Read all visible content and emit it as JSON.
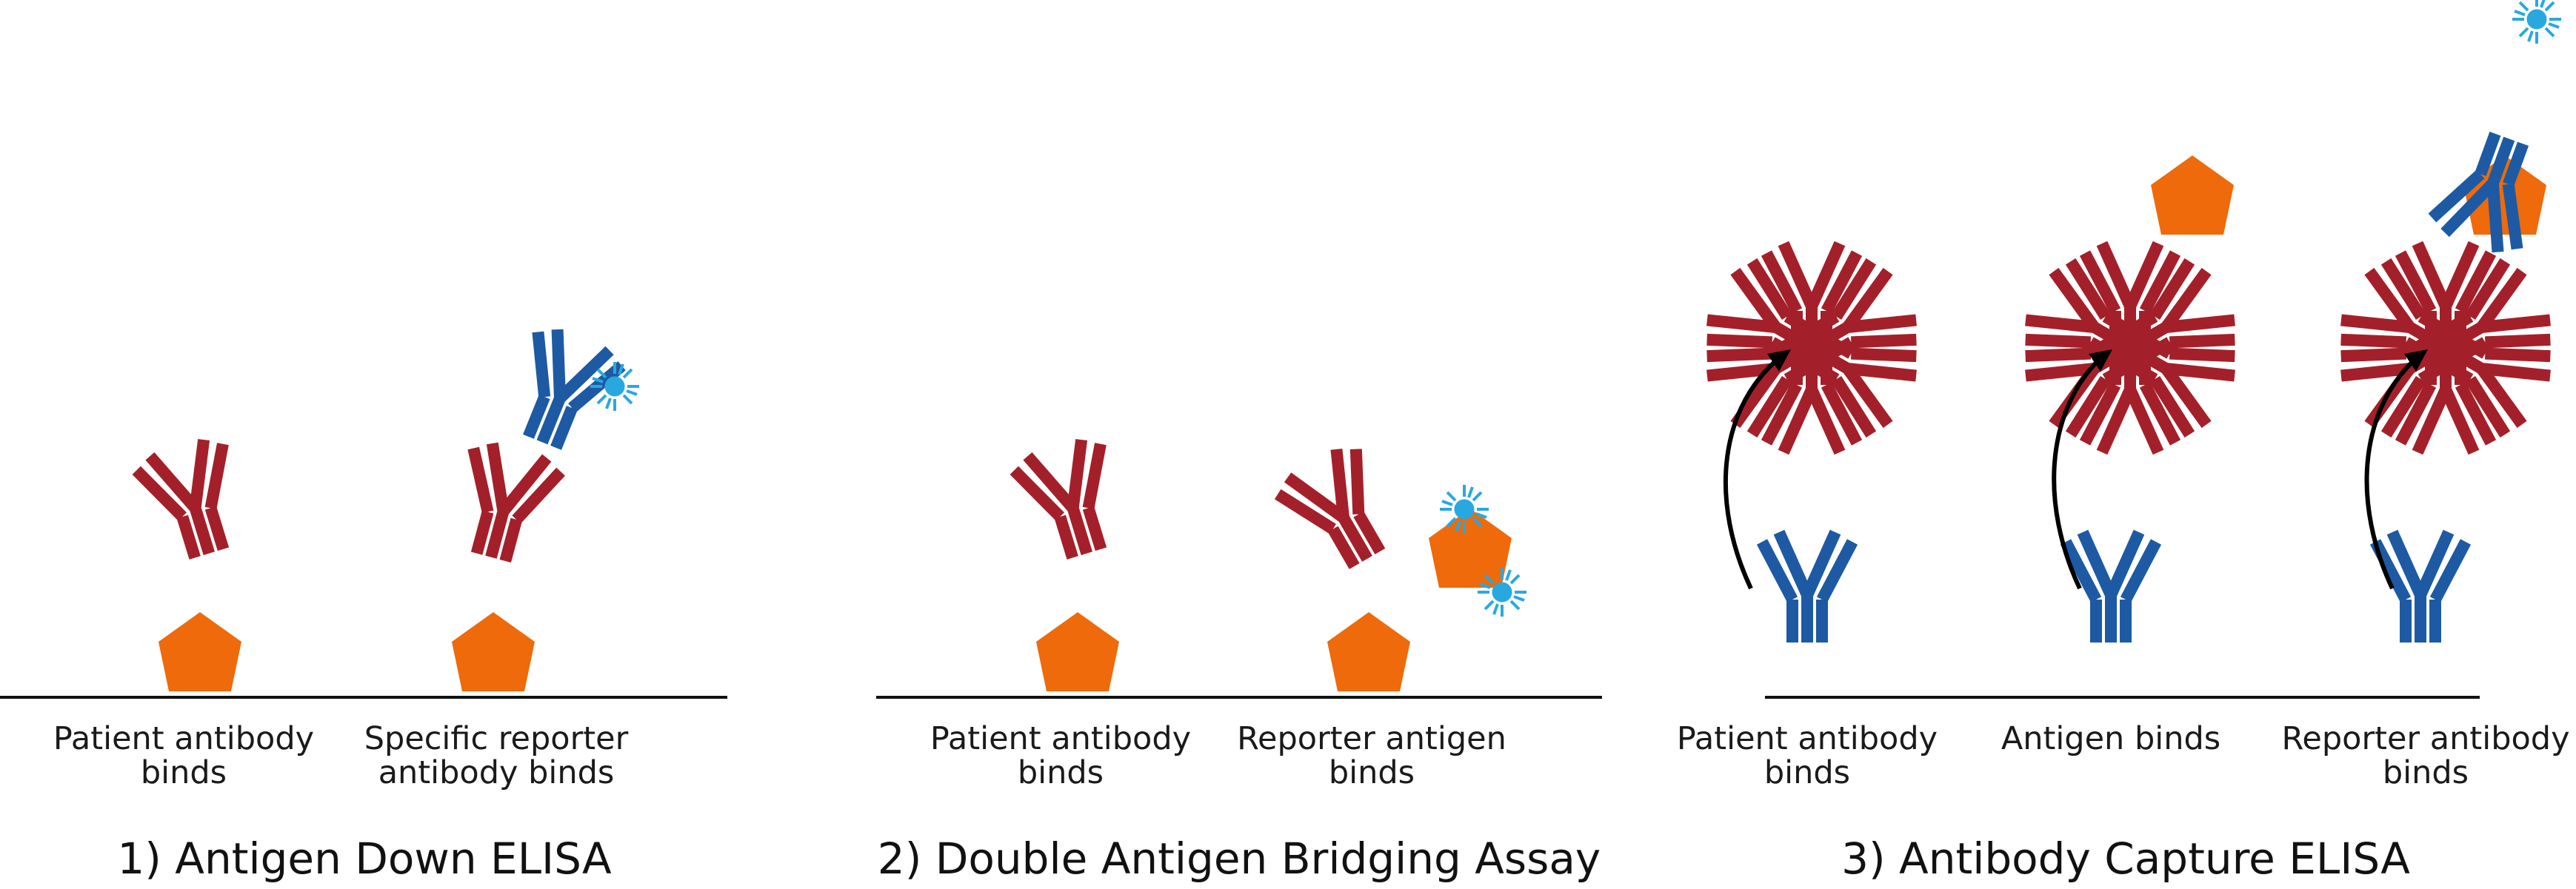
{
  "colors": {
    "patient_antibody": "#a3202a",
    "reporter_antibody": "#1d5aa3",
    "antigen": "#ee6a0a",
    "reporter_label": "#29a8df",
    "surface": "#111111"
  },
  "panels": [
    {
      "title": "1) Antigen Down ELISA",
      "steps": [
        {
          "line1": "Patient antibody",
          "line2": "binds"
        },
        {
          "line1": "Specific reporter",
          "line2": "antibody binds"
        }
      ]
    },
    {
      "title": "2) Double Antigen Bridging Assay",
      "steps": [
        {
          "line1": "Patient antibody",
          "line2": "binds"
        },
        {
          "line1": "Reporter antigen",
          "line2": "binds"
        }
      ]
    },
    {
      "title": "3) Antibody Capture ELISA",
      "steps": [
        {
          "line1": "Patient antibody",
          "line2": "binds"
        },
        {
          "line1": "Antigen binds",
          "line2": ""
        },
        {
          "line1": "Reporter antibody",
          "line2": "binds"
        }
      ]
    }
  ]
}
